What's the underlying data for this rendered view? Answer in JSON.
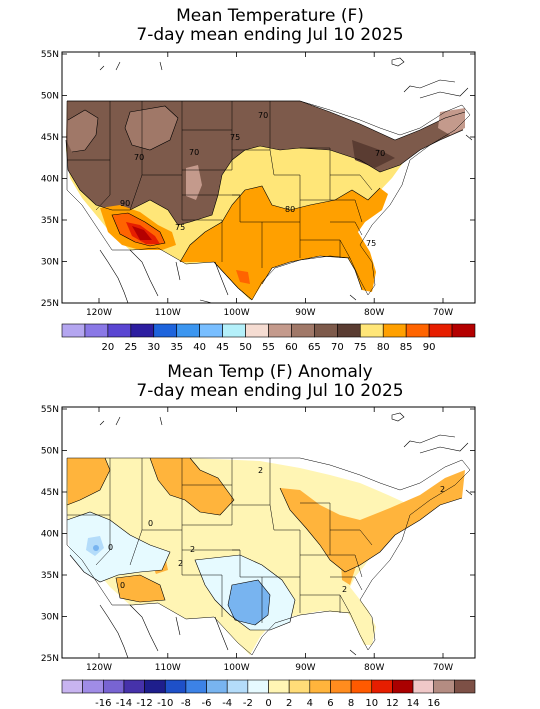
{
  "panels": [
    {
      "title_line1": "Mean Temperature (F)",
      "title_line2": "7-day mean ending Jul 10 2025",
      "lat_labels": [
        "55N",
        "50N",
        "45N",
        "40N",
        "35N",
        "30N",
        "25N"
      ],
      "lon_labels": [
        "120W",
        "110W",
        "100W",
        "90W",
        "80W",
        "70W"
      ],
      "contour_labels": [
        "70",
        "75",
        "70",
        "70",
        "80",
        "75",
        "90",
        "70",
        "75"
      ],
      "colorbar": {
        "colors": [
          "#b4a6f0",
          "#8a78e6",
          "#5a46d2",
          "#2d1ea0",
          "#1e64dc",
          "#3c96f0",
          "#78beff",
          "#b4f0fa",
          "#f5dcd2",
          "#c49a8c",
          "#a07868",
          "#7d5a4b",
          "#5a3c32",
          "#ffe678",
          "#ffa000",
          "#ff6400",
          "#e61e00",
          "#b40000"
        ],
        "labels": [
          "20",
          "25",
          "30",
          "35",
          "40",
          "45",
          "50",
          "55",
          "60",
          "65",
          "70",
          "75",
          "80",
          "85",
          "90"
        ]
      }
    },
    {
      "title_line1": "Mean Temp (F) Anomaly",
      "title_line2": "7-day mean ending Jul 10 2025",
      "lat_labels": [
        "55N",
        "50N",
        "45N",
        "40N",
        "35N",
        "30N",
        "25N"
      ],
      "lon_labels": [
        "120W",
        "110W",
        "100W",
        "90W",
        "80W",
        "70W"
      ],
      "contour_labels": [
        "2",
        "0",
        "2",
        "2",
        "0",
        "2",
        "0",
        "2"
      ],
      "colorbar": {
        "colors": [
          "#c8b4f0",
          "#a08ce6",
          "#7864d2",
          "#4632aa",
          "#1e1e8c",
          "#1e50c8",
          "#3c82e6",
          "#78b4f0",
          "#b4dcfa",
          "#e6faff",
          "#fff5b4",
          "#ffdc78",
          "#ffb43c",
          "#ff8c1e",
          "#ff5a00",
          "#e61e00",
          "#aa0000",
          "#f0c8c8",
          "#b48c82",
          "#7d5046"
        ],
        "labels": [
          "-16",
          "-14",
          "-12",
          "-10",
          "-8",
          "-6",
          "-4",
          "-2",
          "0",
          "2",
          "4",
          "6",
          "8",
          "10",
          "12",
          "14",
          "16"
        ]
      }
    }
  ]
}
